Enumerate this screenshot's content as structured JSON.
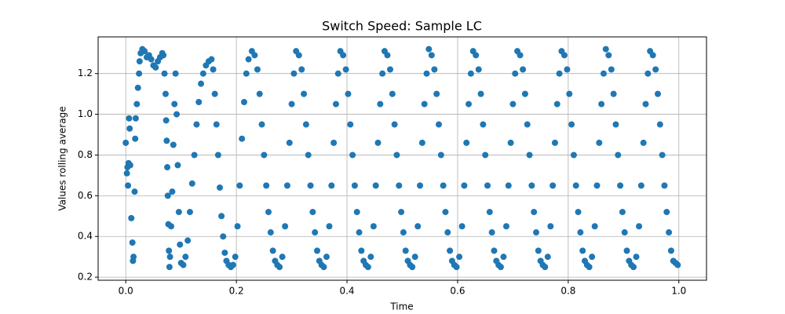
{
  "chart_data": {
    "type": "scatter",
    "title": "Switch Speed: Sample LC",
    "x_label": "Time",
    "y_label": "Values rolling average",
    "color": "#1f77b4",
    "grid": true,
    "xlim": [
      -0.05,
      1.05
    ],
    "ylim": [
      0.185,
      1.38
    ],
    "xticks": [
      {
        "value": 0,
        "label": "0.0"
      },
      0.2,
      0.4,
      0.6,
      0.8,
      {
        "value": 1,
        "label": "1.0"
      }
    ],
    "yticks": [
      0.2,
      0.4,
      0.6,
      0.8,
      {
        "value": 1,
        "label": "1.0"
      },
      1.2
    ],
    "x": [
      0,
      0.002,
      0.003,
      0.004,
      0.005,
      0.006,
      0.007,
      0.008,
      0.01,
      0.012,
      0.013,
      0.014,
      0.016,
      0.017,
      0.018,
      0.02,
      0.022,
      0.024,
      0.025,
      0.027,
      0.03,
      0.034,
      0.038,
      0.042,
      0.046,
      0.05,
      0.054,
      0.058,
      0.062,
      0.066,
      0.068,
      0.07,
      0.072,
      0.073,
      0.074,
      0.075,
      0.076,
      0.077,
      0.078,
      0.079,
      0.08,
      0.082,
      0.084,
      0.086,
      0.088,
      0.09,
      0.092,
      0.094,
      0.096,
      0.098,
      0.1,
      0.104,
      0.108,
      0.112,
      0.116,
      0.12,
      0.124,
      0.128,
      0.132,
      0.136,
      0.14,
      0.145,
      0.15,
      0.155,
      0.158,
      0.161,
      0.164,
      0.167,
      0.17,
      0.173,
      0.176,
      0.179,
      0.182,
      0.186,
      0.19,
      0.194,
      0.198,
      0.202,
      0.206,
      0.21,
      0.214,
      0.218,
      0.222,
      0.228,
      0.233,
      0.238,
      0.242,
      0.246,
      0.25,
      0.254,
      0.258,
      0.262,
      0.266,
      0.27,
      0.274,
      0.278,
      0.283,
      0.288,
      0.292,
      0.296,
      0.3,
      0.304,
      0.308,
      0.313,
      0.318,
      0.322,
      0.326,
      0.33,
      0.334,
      0.338,
      0.342,
      0.346,
      0.35,
      0.354,
      0.358,
      0.363,
      0.368,
      0.372,
      0.376,
      0.38,
      0.384,
      0.388,
      0.393,
      0.398,
      0.402,
      0.406,
      0.41,
      0.414,
      0.418,
      0.422,
      0.426,
      0.43,
      0.434,
      0.438,
      0.443,
      0.448,
      0.452,
      0.456,
      0.46,
      0.464,
      0.468,
      0.473,
      0.478,
      0.482,
      0.486,
      0.49,
      0.494,
      0.498,
      0.502,
      0.506,
      0.51,
      0.514,
      0.518,
      0.523,
      0.528,
      0.532,
      0.536,
      0.54,
      0.544,
      0.548,
      0.553,
      0.558,
      0.562,
      0.566,
      0.57,
      0.574,
      0.578,
      0.582,
      0.586,
      0.59,
      0.594,
      0.598,
      0.603,
      0.608,
      0.612,
      0.616,
      0.62,
      0.624,
      0.628,
      0.633,
      0.638,
      0.642,
      0.646,
      0.65,
      0.654,
      0.658,
      0.662,
      0.666,
      0.67,
      0.674,
      0.678,
      0.683,
      0.688,
      0.692,
      0.696,
      0.7,
      0.704,
      0.708,
      0.713,
      0.718,
      0.722,
      0.726,
      0.73,
      0.734,
      0.738,
      0.742,
      0.746,
      0.75,
      0.754,
      0.758,
      0.763,
      0.768,
      0.772,
      0.776,
      0.78,
      0.784,
      0.788,
      0.793,
      0.798,
      0.802,
      0.806,
      0.81,
      0.814,
      0.818,
      0.822,
      0.826,
      0.83,
      0.834,
      0.838,
      0.843,
      0.848,
      0.852,
      0.856,
      0.86,
      0.864,
      0.868,
      0.873,
      0.878,
      0.882,
      0.886,
      0.89,
      0.894,
      0.898,
      0.902,
      0.906,
      0.91,
      0.914,
      0.918,
      0.923,
      0.928,
      0.932,
      0.936,
      0.94,
      0.944,
      0.948,
      0.953,
      0.958,
      0.962,
      0.966,
      0.97,
      0.974,
      0.978,
      0.982,
      0.986,
      0.99,
      0.994,
      0.998
    ],
    "values": [
      0.86,
      0.71,
      0.74,
      0.65,
      0.76,
      0.98,
      0.93,
      0.75,
      0.49,
      0.37,
      0.28,
      0.3,
      0.62,
      0.88,
      0.98,
      1.05,
      1.13,
      1.2,
      1.26,
      1.3,
      1.32,
      1.31,
      1.28,
      1.29,
      1.27,
      1.24,
      1.23,
      1.26,
      1.28,
      1.3,
      1.29,
      1.2,
      1.1,
      0.97,
      0.87,
      0.74,
      0.6,
      0.46,
      0.33,
      0.25,
      0.3,
      0.45,
      0.62,
      0.85,
      1.05,
      1.2,
      1.0,
      0.75,
      0.52,
      0.36,
      0.27,
      0.26,
      0.3,
      0.38,
      0.52,
      0.66,
      0.8,
      0.95,
      1.06,
      1.15,
      1.2,
      1.24,
      1.26,
      1.27,
      1.22,
      1.1,
      0.95,
      0.8,
      0.64,
      0.5,
      0.4,
      0.32,
      0.28,
      0.26,
      0.25,
      0.26,
      0.3,
      0.45,
      0.65,
      0.88,
      1.06,
      1.2,
      1.27,
      1.31,
      1.29,
      1.22,
      1.1,
      0.95,
      0.8,
      0.65,
      0.52,
      0.42,
      0.33,
      0.28,
      0.26,
      0.25,
      0.3,
      0.45,
      0.65,
      0.86,
      1.05,
      1.2,
      1.31,
      1.29,
      1.22,
      1.1,
      0.95,
      0.8,
      0.65,
      0.52,
      0.42,
      0.33,
      0.28,
      0.26,
      0.25,
      0.3,
      0.45,
      0.65,
      0.86,
      1.05,
      1.2,
      1.31,
      1.29,
      1.22,
      1.1,
      0.95,
      0.8,
      0.65,
      0.52,
      0.42,
      0.33,
      0.28,
      0.26,
      0.25,
      0.3,
      0.45,
      0.65,
      0.86,
      1.05,
      1.2,
      1.31,
      1.29,
      1.22,
      1.1,
      0.95,
      0.8,
      0.65,
      0.52,
      0.42,
      0.33,
      0.28,
      0.26,
      0.25,
      0.3,
      0.45,
      0.65,
      0.86,
      1.05,
      1.2,
      1.32,
      1.29,
      1.22,
      1.1,
      0.95,
      0.8,
      0.65,
      0.52,
      0.42,
      0.33,
      0.28,
      0.26,
      0.25,
      0.3,
      0.45,
      0.65,
      0.86,
      1.05,
      1.2,
      1.31,
      1.29,
      1.22,
      1.1,
      0.95,
      0.8,
      0.65,
      0.52,
      0.42,
      0.33,
      0.28,
      0.26,
      0.25,
      0.3,
      0.45,
      0.65,
      0.86,
      1.05,
      1.2,
      1.31,
      1.29,
      1.22,
      1.1,
      0.95,
      0.8,
      0.65,
      0.52,
      0.42,
      0.33,
      0.28,
      0.26,
      0.25,
      0.3,
      0.45,
      0.65,
      0.86,
      1.05,
      1.2,
      1.31,
      1.29,
      1.22,
      1.1,
      0.95,
      0.8,
      0.65,
      0.52,
      0.42,
      0.33,
      0.28,
      0.26,
      0.25,
      0.3,
      0.45,
      0.65,
      0.86,
      1.05,
      1.2,
      1.32,
      1.29,
      1.22,
      1.1,
      0.95,
      0.8,
      0.65,
      0.52,
      0.42,
      0.33,
      0.28,
      0.26,
      0.25,
      0.3,
      0.45,
      0.65,
      0.86,
      1.05,
      1.2,
      1.31,
      1.29,
      1.22,
      1.1,
      0.95,
      0.8,
      0.65,
      0.52,
      0.42,
      0.33,
      0.28,
      0.27,
      0.26
    ]
  }
}
